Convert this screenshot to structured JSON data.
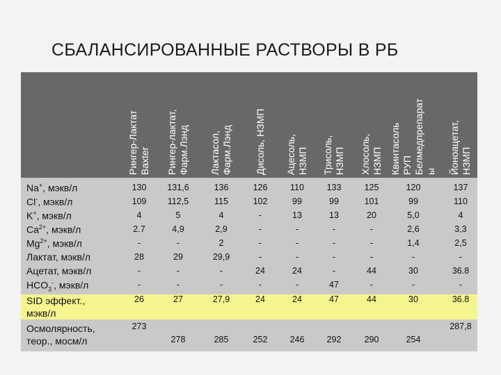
{
  "title": "СБАЛАНСИРОВАННЫЕ РАСТВОРЫ В РБ",
  "columns": [
    [
      "Рингер-Лактат",
      "Baxter"
    ],
    [
      "Рингер-лактат,",
      "Фарм.Лэнд"
    ],
    [
      "Лактасол,",
      "Фарм.Лэнд"
    ],
    [
      "Дисоль, НЗМП"
    ],
    [
      "Ацесоль,",
      "НЗМП"
    ],
    [
      "Трисоль,",
      "НЗМП"
    ],
    [
      "Хлосоль,",
      "НЗМП"
    ],
    [
      "Квинтасоль",
      "РУП",
      "Белмедпрепарат",
      "ы"
    ],
    [
      "Йоноацетат,",
      "НЗМП"
    ]
  ],
  "rows": [
    {
      "label_main": "Na",
      "label_sup": "+",
      "label_rest": ", мэкв/л",
      "values": [
        "130",
        "131,6",
        "136",
        "126",
        "110",
        "133",
        "125",
        "120",
        "137"
      ]
    },
    {
      "label_main": "Cl",
      "label_sup": "-",
      "label_rest": ", мэкв/л",
      "values": [
        "109",
        "112,5",
        "115",
        "102",
        "99",
        "99",
        "101",
        "99",
        "110"
      ]
    },
    {
      "label_main": "K",
      "label_sup": "+",
      "label_rest": ", мэкв/л",
      "values": [
        "4",
        "5",
        "4",
        "-",
        "13",
        "13",
        "20",
        "5,0",
        "4"
      ]
    },
    {
      "label_main": "Ca",
      "label_sup": "2+",
      "label_rest": ", мэкв/л",
      "values": [
        "2.7",
        "4,9",
        "2,9",
        "-",
        "-",
        "-",
        "-",
        "2,6",
        "3,3"
      ]
    },
    {
      "label_main": "Mg",
      "label_sup": "2+",
      "label_rest": ", мэкв/л",
      "values": [
        "-",
        "-",
        "2",
        "-",
        "-",
        "-",
        "-",
        "1,4",
        "2,5"
      ]
    },
    {
      "label_main": "Лактат, мэкв/л",
      "label_sup": "",
      "label_rest": "",
      "values": [
        "28",
        "29",
        "29,9",
        "-",
        "-",
        "-",
        "-",
        "-",
        "-"
      ]
    },
    {
      "label_main": "Ацетат, мэкв/л",
      "label_sup": "",
      "label_rest": "",
      "values": [
        "-",
        "-",
        "-",
        "24",
        "24",
        "-",
        "44",
        "30",
        "36.8"
      ]
    },
    {
      "label_main": "HCO",
      "label_sub": "3",
      "label_sup": "-",
      "label_rest": ", мэкв/л",
      "values": [
        "-",
        "-",
        "-",
        "-",
        "-",
        "47",
        "-",
        "-",
        "-"
      ]
    },
    {
      "label_main": "SID эффект.,",
      "label_line2": "мэкв/л",
      "values": [
        "26",
        "27",
        "27,9",
        "24",
        "24",
        "47",
        "44",
        "30",
        "36.8"
      ]
    },
    {
      "label_main": "Осмолярность,",
      "label_line2": "теор., мосм/л",
      "values": [
        "273",
        "278",
        "285",
        "252",
        "246",
        "292",
        "290",
        "254",
        "287,8"
      ]
    }
  ],
  "colors": {
    "header_bg": "#686868",
    "body_bg": "#c9c9c9",
    "sid_bg": "#f5f58f"
  }
}
